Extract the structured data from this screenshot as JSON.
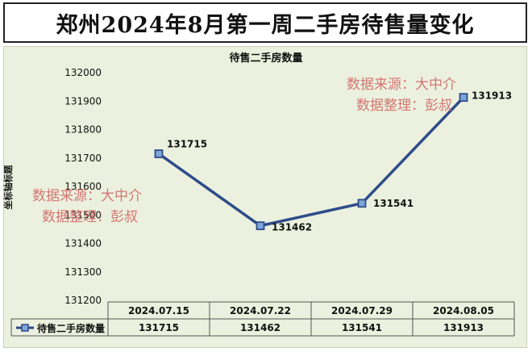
{
  "page_title": "郑州2024年8月第一周二手房待售量变化",
  "chart_data": {
    "type": "line",
    "title": "待售二手房数量",
    "ylabel": "坐标轴标题",
    "xlabel": "",
    "categories": [
      "2024.07.15",
      "2024.07.22",
      "2024.07.29",
      "2024.08.05"
    ],
    "series": [
      {
        "name": "待售二手房数量",
        "values": [
          131715,
          131462,
          131541,
          131913
        ]
      }
    ],
    "ylim": [
      131200,
      132000
    ],
    "yticks": [
      "131200",
      "131300",
      "131400",
      "131500",
      "131600",
      "131700",
      "131800",
      "131900",
      "132000"
    ],
    "data_labels": [
      "131715",
      "131462",
      "131541",
      "131913"
    ],
    "grid": false,
    "legend": "data-table",
    "line_color": "#2f4c8a",
    "marker_fill": "#7fa6d8",
    "watermarks": [
      {
        "line1": "数据来源：大中介",
        "line2": "数据整理：彭叔"
      },
      {
        "line1": "数据来源：大中介",
        "line2": "数据整理：彭叔"
      }
    ]
  }
}
